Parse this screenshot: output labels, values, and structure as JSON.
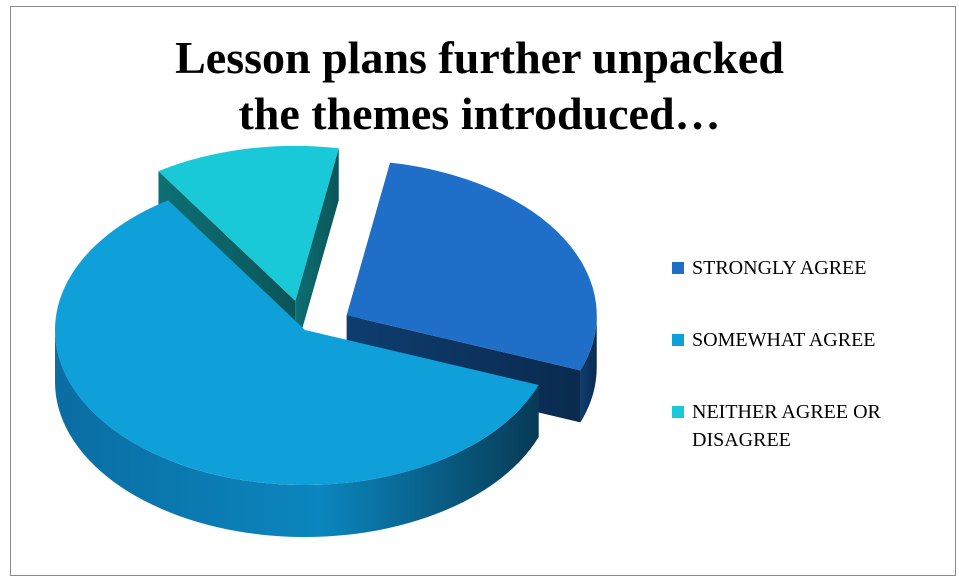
{
  "chart_data": {
    "type": "pie",
    "title_lines": [
      "Lesson plans further unpacked",
      "the themes introduced…"
    ],
    "categories": [
      "STRONGLY AGREE",
      "SOMEWHAT AGREE",
      "NEITHER AGREE OR DISAGREE"
    ],
    "values": [
      28,
      60,
      12
    ],
    "colors": [
      "#1F6FC8",
      "#0FA0DA",
      "#1AC9D8"
    ],
    "legend_position": "right",
    "style": "3d-exploded"
  }
}
